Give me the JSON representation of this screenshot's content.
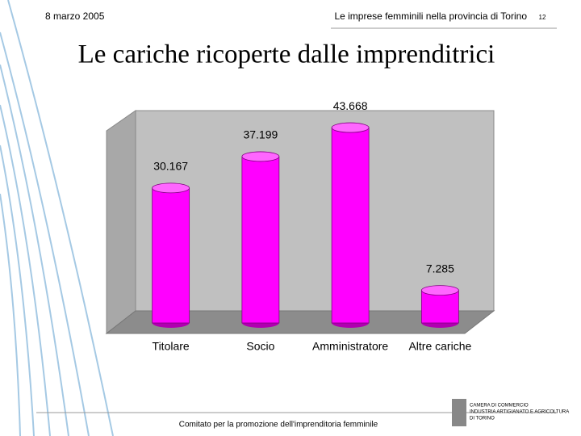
{
  "header": {
    "date": "8 marzo 2005",
    "subject": "Le imprese femminili nella provincia di Torino",
    "page": "12"
  },
  "chart_data": {
    "type": "bar",
    "title": "Le cariche ricoperte dalle imprenditrici",
    "categories": [
      "Titolare",
      "Socio",
      "Amministratore",
      "Altre cariche"
    ],
    "values": [
      30167,
      37199,
      43668,
      7285
    ],
    "value_labels": [
      "30.167",
      "37.199",
      "43.668",
      "7.285"
    ],
    "color": "#ff00ff",
    "ylim": [
      0,
      50000
    ]
  },
  "footer": {
    "text": "Comitato per la promozione dell'imprenditoria femminile",
    "logo": [
      "CAMERA DI COMMERCIO",
      "INDUSTRIA ARTIGIANATO E AGRICOLTURA",
      "DI TORINO"
    ]
  }
}
